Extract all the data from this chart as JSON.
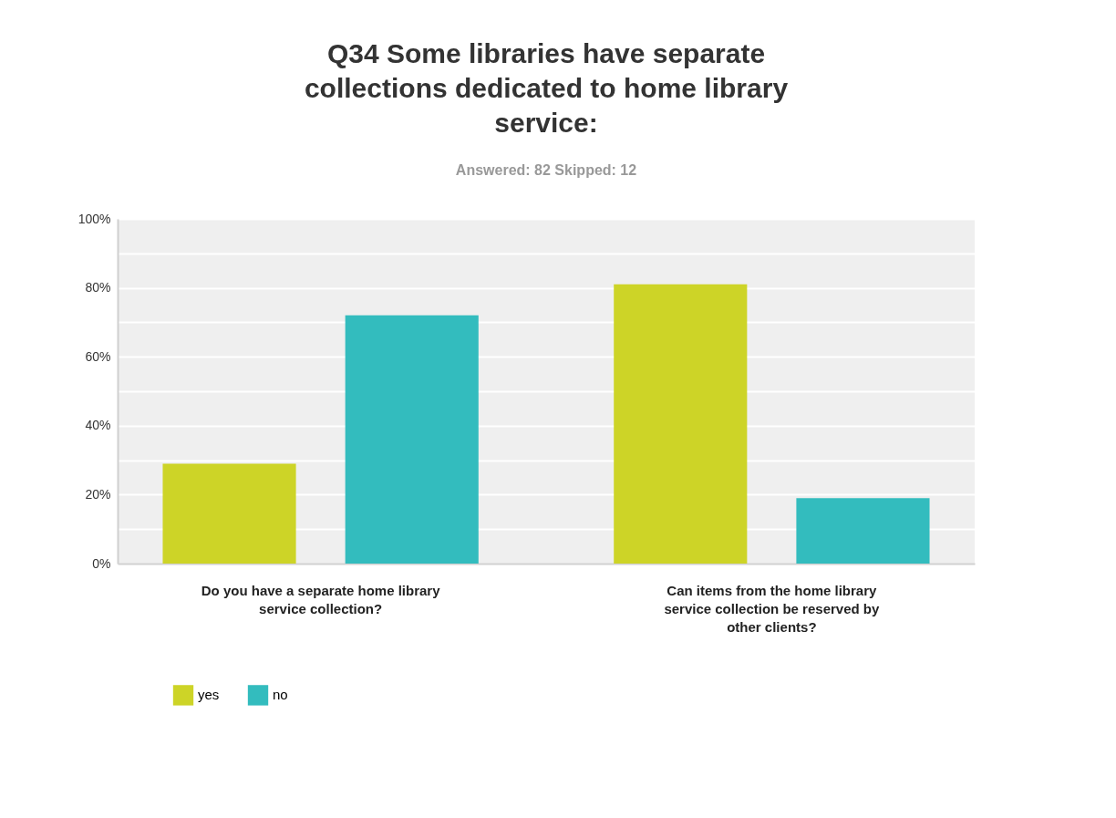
{
  "chart_data": {
    "type": "bar",
    "title": "Q34 Some libraries have separate collections dedicated to home library service:",
    "subtitle": "Answered: 82    Skipped: 12",
    "categories": [
      "Do you have a separate home library service collection?",
      "Can items from the home library service collection be reserved by other clients?"
    ],
    "series": [
      {
        "name": "yes",
        "color": "#cdd427",
        "values": [
          29,
          81
        ]
      },
      {
        "name": "no",
        "color": "#33bcbe",
        "values": [
          72,
          19
        ]
      }
    ],
    "ylim": [
      0,
      100
    ],
    "yticks": [
      {
        "value": 0,
        "label": "0%"
      },
      {
        "value": 10,
        "label": null
      },
      {
        "value": 20,
        "label": "20%"
      },
      {
        "value": 30,
        "label": null
      },
      {
        "value": 40,
        "label": "40%"
      },
      {
        "value": 50,
        "label": null
      },
      {
        "value": 60,
        "label": "60%"
      },
      {
        "value": 70,
        "label": null
      },
      {
        "value": 80,
        "label": "80%"
      },
      {
        "value": 90,
        "label": null
      },
      {
        "value": 100,
        "label": "100%"
      }
    ],
    "grid": "y",
    "legend": "bottom left"
  }
}
